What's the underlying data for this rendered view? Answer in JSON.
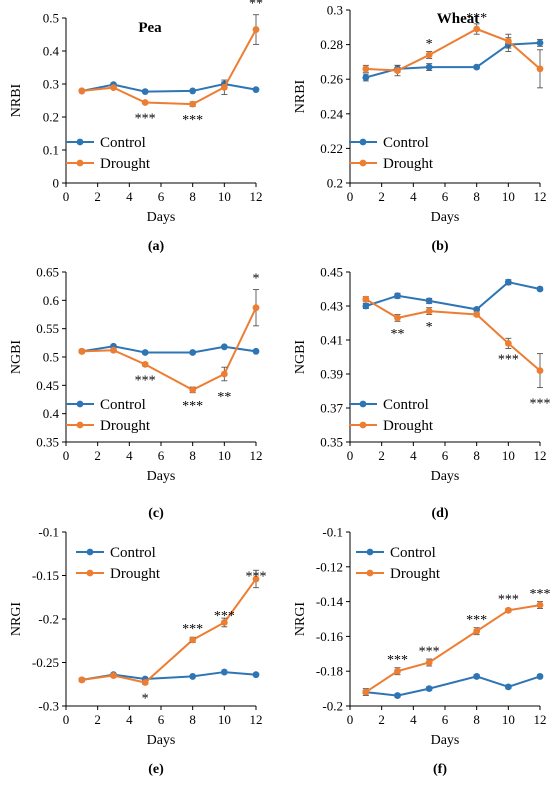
{
  "colors": {
    "control": "#2e75b6",
    "drought": "#ed7d31",
    "axis": "#000000"
  },
  "chart_data": [
    {
      "type": "line",
      "panel_label": "(a)",
      "title": "Pea",
      "xlabel": "Days",
      "ylabel": "NRBI",
      "xlim": [
        0,
        12
      ],
      "ylim": [
        0,
        0.5
      ],
      "xticks": [
        0,
        2,
        4,
        6,
        8,
        10,
        12
      ],
      "yticks": [
        0,
        0.1,
        0.2,
        0.3,
        0.4,
        0.5
      ],
      "ytick_labels": [
        "0",
        "0.1",
        "0.2",
        "0.3",
        "0.4",
        "0.5"
      ],
      "legend": "left",
      "x": [
        1,
        3,
        5,
        8,
        10,
        12
      ],
      "series": [
        {
          "name": "Control",
          "values": [
            0.279,
            0.298,
            0.277,
            0.279,
            0.3,
            0.283
          ],
          "errors": [
            0.004,
            0.004,
            0.003,
            0.003,
            0.006,
            0.003
          ]
        },
        {
          "name": "Drought",
          "values": [
            0.279,
            0.289,
            0.244,
            0.239,
            0.29,
            0.465
          ],
          "errors": [
            0.004,
            0.004,
            0.004,
            0.007,
            0.022,
            0.045
          ]
        }
      ],
      "annotations": [
        {
          "x": 5,
          "y": 0.244,
          "text": "***",
          "pos": "below"
        },
        {
          "x": 8,
          "y": 0.239,
          "text": "***",
          "pos": "below"
        },
        {
          "x": 12,
          "y": 0.51,
          "text": "**",
          "pos": "above"
        }
      ]
    },
    {
      "type": "line",
      "panel_label": "(b)",
      "title": "Wheat",
      "xlabel": "Days",
      "ylabel": "NRBI",
      "xlim": [
        0,
        12
      ],
      "ylim": [
        0.2,
        0.3
      ],
      "xticks": [
        0,
        2,
        4,
        6,
        8,
        10,
        12
      ],
      "yticks": [
        0.2,
        0.22,
        0.24,
        0.26,
        0.28,
        0.3
      ],
      "ytick_labels": [
        "0.2",
        "0.22",
        "0.24",
        "0.26",
        "0.28",
        "0.3"
      ],
      "legend": "left",
      "x": [
        1,
        3,
        5,
        8,
        10,
        12
      ],
      "series": [
        {
          "name": "Control",
          "values": [
            0.261,
            0.266,
            0.267,
            0.267,
            0.28,
            0.281
          ],
          "errors": [
            0.002,
            0.002,
            0.002,
            0.001,
            0.004,
            0.002
          ]
        },
        {
          "name": "Drought",
          "values": [
            0.266,
            0.265,
            0.274,
            0.289,
            0.282,
            0.266
          ],
          "errors": [
            0.002,
            0.003,
            0.002,
            0.003,
            0.004,
            0.011
          ]
        }
      ],
      "annotations": [
        {
          "x": 5,
          "y": 0.274,
          "text": "*",
          "pos": "above"
        },
        {
          "x": 8,
          "y": 0.289,
          "text": "***",
          "pos": "above"
        }
      ]
    },
    {
      "type": "line",
      "panel_label": "(c)",
      "title": "",
      "xlabel": "Days",
      "ylabel": "NGBI",
      "xlim": [
        0,
        12
      ],
      "ylim": [
        0.35,
        0.65
      ],
      "xticks": [
        0,
        2,
        4,
        6,
        8,
        10,
        12
      ],
      "yticks": [
        0.35,
        0.4,
        0.45,
        0.5,
        0.55,
        0.6,
        0.65
      ],
      "ytick_labels": [
        "0.35",
        "0.4",
        "0.45",
        "0.5",
        "0.55",
        "0.6",
        "0.65"
      ],
      "legend": "left",
      "x": [
        1,
        3,
        5,
        8,
        10,
        12
      ],
      "series": [
        {
          "name": "Control",
          "values": [
            0.51,
            0.519,
            0.508,
            0.508,
            0.518,
            0.51
          ],
          "errors": [
            0.002,
            0.002,
            0.001,
            0.001,
            0.002,
            0.001
          ]
        },
        {
          "name": "Drought",
          "values": [
            0.51,
            0.512,
            0.487,
            0.442,
            0.47,
            0.587
          ],
          "errors": [
            0.003,
            0.003,
            0.003,
            0.005,
            0.012,
            0.032
          ]
        }
      ],
      "annotations": [
        {
          "x": 5,
          "y": 0.487,
          "text": "***",
          "pos": "below"
        },
        {
          "x": 8,
          "y": 0.442,
          "text": "***",
          "pos": "below"
        },
        {
          "x": 10,
          "y": 0.458,
          "text": "**",
          "pos": "below"
        },
        {
          "x": 12,
          "y": 0.619,
          "text": "*",
          "pos": "above"
        }
      ]
    },
    {
      "type": "line",
      "panel_label": "(d)",
      "title": "",
      "xlabel": "Days",
      "ylabel": "NGBI",
      "xlim": [
        0,
        12
      ],
      "ylim": [
        0.35,
        0.45
      ],
      "xticks": [
        0,
        2,
        4,
        6,
        8,
        10,
        12
      ],
      "yticks": [
        0.35,
        0.37,
        0.39,
        0.41,
        0.43,
        0.45
      ],
      "ytick_labels": [
        "0.35",
        "0.37",
        "0.39",
        "0.41",
        "0.43",
        "0.45"
      ],
      "legend": "left",
      "x": [
        1,
        3,
        5,
        8,
        10,
        12
      ],
      "series": [
        {
          "name": "Control",
          "values": [
            0.43,
            0.436,
            0.433,
            0.428,
            0.444,
            0.44
          ],
          "errors": [
            0.0015,
            0.0015,
            0.0015,
            0.001,
            0.0015,
            0.001
          ]
        },
        {
          "name": "Drought",
          "values": [
            0.434,
            0.423,
            0.427,
            0.425,
            0.408,
            0.392
          ],
          "errors": [
            0.0015,
            0.002,
            0.002,
            0.001,
            0.003,
            0.01
          ]
        }
      ],
      "annotations": [
        {
          "x": 3,
          "y": 0.423,
          "text": "**",
          "pos": "below"
        },
        {
          "x": 5,
          "y": 0.427,
          "text": "*",
          "pos": "below"
        },
        {
          "x": 10,
          "y": 0.408,
          "text": "***",
          "pos": "below"
        },
        {
          "x": 12,
          "y": 0.382,
          "text": "***",
          "pos": "below"
        }
      ]
    },
    {
      "type": "line",
      "panel_label": "(e)",
      "title": "",
      "xlabel": "Days",
      "ylabel": "NRGI",
      "xlim": [
        0,
        12
      ],
      "ylim": [
        -0.3,
        -0.1
      ],
      "xticks": [
        0,
        2,
        4,
        6,
        8,
        10,
        12
      ],
      "yticks": [
        -0.3,
        -0.25,
        -0.2,
        -0.15,
        -0.1
      ],
      "ytick_labels": [
        "-0.3",
        "-0.25",
        "-0.2",
        "-0.15",
        "-0.1"
      ],
      "legend": "top-left",
      "x": [
        1,
        3,
        5,
        8,
        10,
        12
      ],
      "series": [
        {
          "name": "Control",
          "values": [
            -0.27,
            -0.264,
            -0.269,
            -0.266,
            -0.261,
            -0.264
          ],
          "errors": [
            0.001,
            0.001,
            0.001,
            0.001,
            0.001,
            0.001
          ]
        },
        {
          "name": "Drought",
          "values": [
            -0.27,
            -0.265,
            -0.273,
            -0.224,
            -0.204,
            -0.154
          ],
          "errors": [
            0.002,
            0.002,
            0.002,
            0.003,
            0.005,
            0.01
          ]
        }
      ],
      "annotations": [
        {
          "x": 5,
          "y": -0.273,
          "text": "*",
          "pos": "below"
        },
        {
          "x": 8,
          "y": -0.224,
          "text": "***",
          "pos": "above"
        },
        {
          "x": 10,
          "y": -0.209,
          "text": "***",
          "pos": "above"
        },
        {
          "x": 12,
          "y": -0.164,
          "text": "***",
          "pos": "above"
        }
      ]
    },
    {
      "type": "line",
      "panel_label": "(f)",
      "title": "",
      "xlabel": "Days",
      "ylabel": "NRGI",
      "xlim": [
        0,
        12
      ],
      "ylim": [
        -0.2,
        -0.1
      ],
      "xticks": [
        0,
        2,
        4,
        6,
        8,
        10,
        12
      ],
      "yticks": [
        -0.2,
        -0.18,
        -0.16,
        -0.14,
        -0.12,
        -0.1
      ],
      "ytick_labels": [
        "-0.2",
        "-0.18",
        "-0.16",
        "-0.14",
        "-0.12",
        "-0.1"
      ],
      "legend": "top-left",
      "x": [
        1,
        3,
        5,
        8,
        10,
        12
      ],
      "series": [
        {
          "name": "Control",
          "values": [
            -0.192,
            -0.194,
            -0.19,
            -0.183,
            -0.189,
            -0.183
          ],
          "errors": [
            0.001,
            0.001,
            0.001,
            0.001,
            0.001,
            0.001
          ]
        },
        {
          "name": "Drought",
          "values": [
            -0.192,
            -0.18,
            -0.175,
            -0.157,
            -0.145,
            -0.142
          ],
          "errors": [
            0.002,
            0.002,
            0.002,
            0.002,
            0.001,
            0.002
          ]
        }
      ],
      "annotations": [
        {
          "x": 3,
          "y": -0.18,
          "text": "***",
          "pos": "above"
        },
        {
          "x": 5,
          "y": -0.175,
          "text": "***",
          "pos": "above"
        },
        {
          "x": 8,
          "y": -0.157,
          "text": "***",
          "pos": "above"
        },
        {
          "x": 10,
          "y": -0.145,
          "text": "***",
          "pos": "above"
        },
        {
          "x": 12,
          "y": -0.142,
          "text": "***",
          "pos": "above"
        }
      ]
    }
  ]
}
